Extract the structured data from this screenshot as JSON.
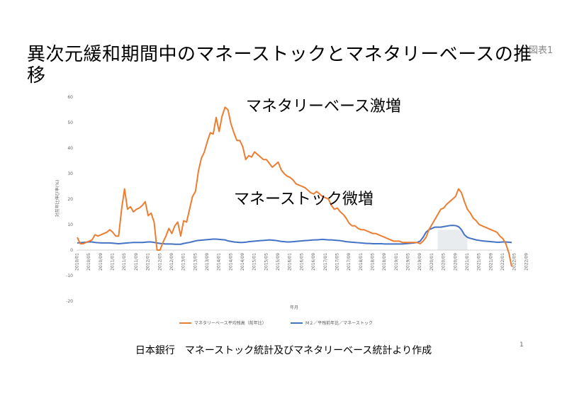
{
  "slide": {
    "title": "異次元緩和期間中のマネーストックとマネタリーベースの推移",
    "figure_label": "図表1",
    "annotation_base": "マネタリーベース激増",
    "annotation_stock": "マネーストック微増",
    "source": "日本銀行　マネーストック統計及びマネタリーベース統計より作成",
    "page_number": "1"
  },
  "chart_data": {
    "type": "line",
    "ylabel": "対前年比伸び率(%)",
    "xlabel": "年月",
    "ylim": [
      -20,
      60
    ],
    "yticks": [
      60,
      50,
      40,
      30,
      20,
      10,
      0,
      -10,
      -20
    ],
    "grid": false,
    "legend_position": "bottom",
    "x_labels": [
      "2010/01",
      "2010/05",
      "2010/09",
      "2011/01",
      "2011/05",
      "2011/09",
      "2012/01",
      "2012/05",
      "2012/09",
      "2013/01",
      "2013/05",
      "2013/09",
      "2014/01",
      "2014/05",
      "2014/09",
      "2015/01",
      "2015/05",
      "2015/09",
      "2016/01",
      "2016/05",
      "2016/09",
      "2017/01",
      "2017/05",
      "2017/09",
      "2018/01",
      "2018/05",
      "2018/09",
      "2019/01",
      "2019/05",
      "2019/09",
      "2020/01",
      "2020/05",
      "2020/09",
      "2021/01",
      "2021/05",
      "2021/09",
      "2022/01",
      "2022/05",
      "2022/09"
    ],
    "series": [
      {
        "name": "マネタリーベース平均残高（前年比）",
        "color": "#ED7D31",
        "values": [
          5,
          2.5,
          2.5,
          3,
          3.5,
          4,
          6,
          5.5,
          6,
          6.5,
          7,
          8,
          7,
          5.5,
          5.5,
          16,
          24,
          16,
          17,
          15,
          16,
          16.5,
          17.5,
          19,
          13.5,
          14.5,
          11,
          0,
          0,
          3,
          5.5,
          8.5,
          6.5,
          9.5,
          11,
          5.5,
          11.5,
          11,
          16,
          21,
          23,
          31,
          36,
          38.5,
          42.5,
          46,
          45.5,
          52,
          46.5,
          52.5,
          56,
          55,
          49.5,
          46,
          43,
          43,
          40.5,
          35.5,
          37,
          36.5,
          38.5,
          37.5,
          36.5,
          35.5,
          35.5,
          34,
          32.5,
          33.5,
          34.5,
          31.5,
          30,
          29,
          28.5,
          27.5,
          26,
          25.5,
          25,
          24.5,
          23.5,
          22.5,
          22,
          23,
          22,
          21,
          20.5,
          20,
          17.5,
          16,
          16.5,
          15,
          14,
          12.5,
          10.5,
          9.5,
          9.5,
          8.5,
          8,
          8,
          7.5,
          7,
          6.5,
          6.5,
          6,
          5.5,
          5,
          4.5,
          4,
          3.5,
          3.5,
          3.5,
          3,
          3,
          3,
          3,
          3,
          3,
          2.5,
          3.5,
          5,
          8,
          10,
          12,
          14,
          16,
          16.5,
          18,
          19,
          20,
          21,
          24,
          22.5,
          19,
          16,
          14.5,
          12.5,
          11.5,
          10,
          9.5,
          9,
          8.5,
          8,
          7.5,
          7,
          5.5,
          4.5,
          2.5,
          -1,
          -6.5
        ]
      },
      {
        "name": "M２／平残前年比／マネーストック",
        "color": "#4472C4",
        "values": [
          2.8,
          2.9,
          3,
          3.1,
          3.2,
          3.2,
          3,
          2.9,
          2.8,
          2.8,
          2.8,
          2.8,
          2.7,
          2.6,
          2.5,
          2.6,
          2.7,
          2.8,
          2.9,
          3,
          3,
          3,
          3,
          3.1,
          3.2,
          3.2,
          3,
          2.8,
          2.6,
          2.5,
          2.4,
          2.4,
          2.4,
          2.3,
          2.3,
          2.3,
          2.6,
          2.8,
          3,
          3.3,
          3.6,
          3.8,
          3.9,
          4,
          4.1,
          4.2,
          4.3,
          4.3,
          4.2,
          4.1,
          4,
          3.6,
          3.4,
          3.2,
          3.1,
          3,
          3,
          3.1,
          3.3,
          3.4,
          3.5,
          3.6,
          3.7,
          3.8,
          3.9,
          4,
          3.9,
          3.8,
          3.6,
          3.4,
          3.3,
          3.2,
          3.2,
          3.3,
          3.4,
          3.5,
          3.6,
          3.7,
          3.8,
          3.9,
          4,
          4,
          4.1,
          4.2,
          4.1,
          4,
          4,
          3.9,
          3.8,
          3.7,
          3.5,
          3.3,
          3.2,
          3.1,
          3,
          2.9,
          2.8,
          2.7,
          2.6,
          2.6,
          2.5,
          2.5,
          2.5,
          2.5,
          2.4,
          2.4,
          2.4,
          2.4,
          2.4,
          2.4,
          2.4,
          2.5,
          2.6,
          2.7,
          2.8,
          3,
          3.5,
          5,
          7,
          8,
          8.5,
          9,
          9,
          9,
          9.2,
          9.4,
          9.6,
          9.7,
          9.6,
          9.2,
          8,
          6,
          5,
          4.6,
          4.3,
          4,
          3.8,
          3.6,
          3.5,
          3.4,
          3.3,
          3.2,
          3.1,
          3.1,
          3.2,
          3.2,
          3.1,
          3
        ]
      }
    ]
  }
}
